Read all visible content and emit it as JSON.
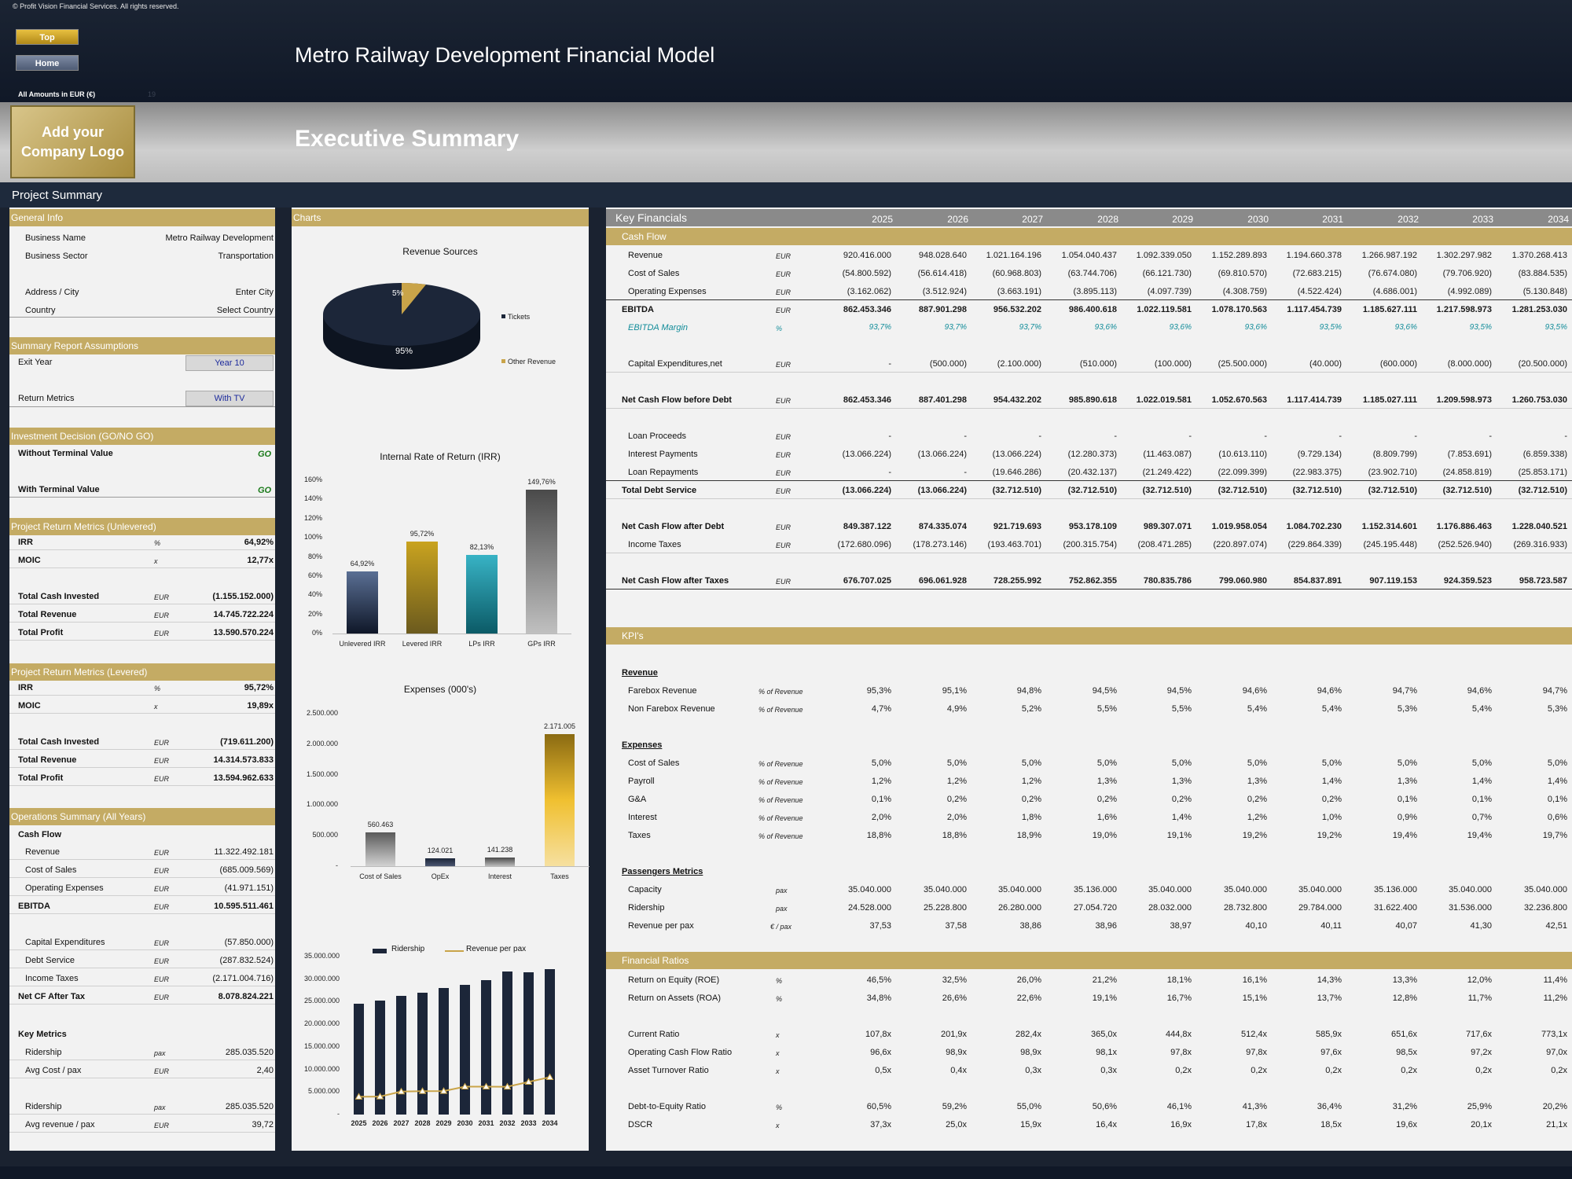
{
  "header": {
    "copyright": "© Profit Vision Financial Services. All rights reserved.",
    "btn_top": "Top",
    "btn_home": "Home",
    "app_title": "Metro Railway Development Financial Model",
    "amounts": "All Amounts in  EUR (€)",
    "amounts_extra": "19",
    "logo": "Add your Company Logo",
    "section_title": "Executive Summary",
    "project_summary": "Project Summary"
  },
  "general": {
    "header": "General Info",
    "rows": [
      [
        "Business Name",
        "Metro Railway Development"
      ],
      [
        "Business Sector",
        "Transportation"
      ],
      [
        "Address / City",
        "Enter City"
      ],
      [
        "Country",
        "Select Country"
      ]
    ]
  },
  "assumptions": {
    "header": "Summary  Report Assumptions",
    "exit_label": "Exit Year",
    "exit_value": "Year 10",
    "return_label": "Return Metrics",
    "return_value": "With TV"
  },
  "decision": {
    "header": "Investment Decision (GO/NO GO)",
    "without": "Without Terminal Value",
    "without_v": "GO",
    "with": "With Terminal Value",
    "with_v": "GO"
  },
  "unlevered": {
    "header": "Project Return Metrics (Unlevered)",
    "rows": [
      [
        "IRR",
        "%",
        "64,92%"
      ],
      [
        "MOIC",
        "x",
        "12,77x"
      ],
      [
        "Total Cash Invested",
        "EUR",
        "(1.155.152.000)"
      ],
      [
        "Total Revenue",
        "EUR",
        "14.745.722.224"
      ],
      [
        "Total Profit",
        "EUR",
        "13.590.570.224"
      ]
    ]
  },
  "levered": {
    "header": "Project Return Metrics (Levered)",
    "rows": [
      [
        "IRR",
        "%",
        "95,72%"
      ],
      [
        "MOIC",
        "x",
        "19,89x"
      ],
      [
        "Total Cash Invested",
        "EUR",
        "(719.611.200)"
      ],
      [
        "Total Revenue",
        "EUR",
        "14.314.573.833"
      ],
      [
        "Total Profit",
        "EUR",
        "13.594.962.633"
      ]
    ]
  },
  "ops": {
    "header": "Operations Summary (All Years)",
    "cashflow": "Cash Flow",
    "rows": [
      [
        "Revenue",
        "EUR",
        "11.322.492.181"
      ],
      [
        "Cost of Sales",
        "EUR",
        "(685.009.569)"
      ],
      [
        "Operating Expenses",
        "EUR",
        "(41.971.151)"
      ],
      [
        "EBITDA",
        "EUR",
        "10.595.511.461"
      ],
      [
        "Capital Expenditures",
        "EUR",
        "(57.850.000)"
      ],
      [
        "Debt Service",
        "EUR",
        "(287.832.524)"
      ],
      [
        "Income Taxes",
        "EUR",
        "(2.171.004.716)"
      ],
      [
        "Net CF After Tax",
        "EUR",
        "8.078.824.221"
      ]
    ],
    "key_metrics": "Key Metrics",
    "km": [
      [
        "Ridership",
        "pax",
        "285.035.520"
      ],
      [
        "Avg Cost / pax",
        "EUR",
        "2,40"
      ],
      [
        "Ridership",
        "pax",
        "285.035.520"
      ],
      [
        "Avg revenue / pax",
        "EUR",
        "39,72"
      ]
    ]
  },
  "charts_header": "Charts",
  "chart_data": [
    {
      "type": "pie",
      "title": "Revenue Sources",
      "categories": [
        "Tickets",
        "Other Revenue"
      ],
      "values": [
        95,
        5
      ],
      "labels": [
        "95%",
        "5%"
      ],
      "colors": [
        "#1c2639",
        "#c9a449"
      ]
    },
    {
      "type": "bar",
      "title": "Internal Rate of Return (IRR)",
      "categories": [
        "Unlevered IRR",
        "Levered IRR",
        "LPs IRR",
        "GPs IRR"
      ],
      "values": [
        64.92,
        95.72,
        82.13,
        149.76
      ],
      "labels": [
        "64,92%",
        "95,72%",
        "82,13%",
        "149,76%"
      ],
      "ylim": [
        0,
        160
      ],
      "yticks": [
        "0%",
        "20%",
        "40%",
        "60%",
        "80%",
        "100%",
        "120%",
        "140%",
        "160%"
      ]
    },
    {
      "type": "bar",
      "title": "Expenses (000's)",
      "categories": [
        "Cost of Sales",
        "OpEx",
        "Interest",
        "Taxes"
      ],
      "values": [
        560463,
        124021,
        141238,
        2171005
      ],
      "labels": [
        "560.463",
        "124.021",
        "141.238",
        "2.171.005"
      ],
      "ylim": [
        0,
        2500000
      ],
      "yticks": [
        "-",
        "500.000",
        "1.000.000",
        "1.500.000",
        "2.000.000",
        "2.500.000"
      ]
    },
    {
      "type": "bar",
      "title": "",
      "categories": [
        "2025",
        "2026",
        "2027",
        "2028",
        "2029",
        "2030",
        "2031",
        "2032",
        "2033",
        "2034"
      ],
      "series": [
        {
          "name": "Ridership",
          "values": [
            24528000,
            25228800,
            26280000,
            27054720,
            28032000,
            28732800,
            29784000,
            31622400,
            31536000,
            32236800
          ]
        },
        {
          "name": "Revenue per pax",
          "values": [
            37.53,
            37.58,
            38.86,
            38.96,
            38.97,
            40.1,
            40.11,
            40.07,
            41.3,
            42.51
          ]
        }
      ],
      "ylim": [
        0,
        35000000
      ],
      "yticks": [
        "-",
        "5.000.000",
        "10.000.000",
        "15.000.000",
        "20.000.000",
        "25.000.000",
        "30.000.000",
        "35.000.000"
      ]
    }
  ],
  "kf": {
    "header": "Key Financials",
    "years": [
      "2025",
      "2026",
      "2027",
      "2028",
      "2029",
      "2030",
      "2031",
      "2032",
      "2033",
      "2034"
    ],
    "cashflow_header": "Cash Flow",
    "rows": [
      {
        "label": "Revenue",
        "unit": "EUR",
        "vals": [
          "920.416.000",
          "948.028.640",
          "1.021.164.196",
          "1.054.040.437",
          "1.092.339.050",
          "1.152.289.893",
          "1.194.660.378",
          "1.266.987.192",
          "1.302.297.982",
          "1.370.268.413"
        ]
      },
      {
        "label": "Cost of Sales",
        "unit": "EUR",
        "vals": [
          "(54.800.592)",
          "(56.614.418)",
          "(60.968.803)",
          "(63.744.706)",
          "(66.121.730)",
          "(69.810.570)",
          "(72.683.215)",
          "(76.674.080)",
          "(79.706.920)",
          "(83.884.535)"
        ]
      },
      {
        "label": "Operating Expenses",
        "unit": "EUR",
        "vals": [
          "(3.162.062)",
          "(3.512.924)",
          "(3.663.191)",
          "(3.895.113)",
          "(4.097.739)",
          "(4.308.759)",
          "(4.522.424)",
          "(4.686.001)",
          "(4.992.089)",
          "(5.130.848)"
        ]
      },
      {
        "label": "EBITDA",
        "unit": "EUR",
        "vals": [
          "862.453.346",
          "887.901.298",
          "956.532.202",
          "986.400.618",
          "1.022.119.581",
          "1.078.170.563",
          "1.117.454.739",
          "1.185.627.111",
          "1.217.598.973",
          "1.281.253.030"
        ]
      },
      {
        "label": "EBITDA Margin",
        "unit": "%",
        "vals": [
          "93,7%",
          "93,7%",
          "93,7%",
          "93,6%",
          "93,6%",
          "93,6%",
          "93,5%",
          "93,6%",
          "93,5%",
          "93,5%"
        ]
      },
      {
        "label": "Capital Expenditures,net",
        "unit": "EUR",
        "vals": [
          "-",
          "(500.000)",
          "(2.100.000)",
          "(510.000)",
          "(100.000)",
          "(25.500.000)",
          "(40.000)",
          "(600.000)",
          "(8.000.000)",
          "(20.500.000)"
        ]
      },
      {
        "label": "Net Cash Flow before Debt",
        "unit": "EUR",
        "vals": [
          "862.453.346",
          "887.401.298",
          "954.432.202",
          "985.890.618",
          "1.022.019.581",
          "1.052.670.563",
          "1.117.414.739",
          "1.185.027.111",
          "1.209.598.973",
          "1.260.753.030"
        ]
      },
      {
        "label": "Loan Proceeds",
        "unit": "EUR",
        "vals": [
          "-",
          "-",
          "-",
          "-",
          "-",
          "-",
          "-",
          "-",
          "-",
          "-"
        ]
      },
      {
        "label": "Interest Payments",
        "unit": "EUR",
        "vals": [
          "(13.066.224)",
          "(13.066.224)",
          "(13.066.224)",
          "(12.280.373)",
          "(11.463.087)",
          "(10.613.110)",
          "(9.729.134)",
          "(8.809.799)",
          "(7.853.691)",
          "(6.859.338)"
        ]
      },
      {
        "label": "Loan Repayments",
        "unit": "EUR",
        "vals": [
          "-",
          "-",
          "(19.646.286)",
          "(20.432.137)",
          "(21.249.422)",
          "(22.099.399)",
          "(22.983.375)",
          "(23.902.710)",
          "(24.858.819)",
          "(25.853.171)"
        ]
      },
      {
        "label": "Total Debt Service",
        "unit": "EUR",
        "vals": [
          "(13.066.224)",
          "(13.066.224)",
          "(32.712.510)",
          "(32.712.510)",
          "(32.712.510)",
          "(32.712.510)",
          "(32.712.510)",
          "(32.712.510)",
          "(32.712.510)",
          "(32.712.510)"
        ]
      },
      {
        "label": "Net Cash Flow after Debt",
        "unit": "EUR",
        "vals": [
          "849.387.122",
          "874.335.074",
          "921.719.693",
          "953.178.109",
          "989.307.071",
          "1.019.958.054",
          "1.084.702.230",
          "1.152.314.601",
          "1.176.886.463",
          "1.228.040.521"
        ]
      },
      {
        "label": "Income Taxes",
        "unit": "EUR",
        "vals": [
          "(172.680.096)",
          "(178.273.146)",
          "(193.463.701)",
          "(200.315.754)",
          "(208.471.285)",
          "(220.897.074)",
          "(229.864.339)",
          "(245.195.448)",
          "(252.526.940)",
          "(269.316.933)"
        ]
      },
      {
        "label": "Net Cash Flow after Taxes",
        "unit": "EUR",
        "vals": [
          "676.707.025",
          "696.061.928",
          "728.255.992",
          "752.862.355",
          "780.835.786",
          "799.060.980",
          "854.837.891",
          "907.119.153",
          "924.359.523",
          "958.723.587"
        ]
      }
    ],
    "kpi_header": "KPI's",
    "revenue_label": "Revenue",
    "revenue": [
      {
        "label": "Farebox Revenue",
        "unit": "% of Revenue",
        "vals": [
          "95,3%",
          "95,1%",
          "94,8%",
          "94,5%",
          "94,5%",
          "94,6%",
          "94,6%",
          "94,7%",
          "94,6%",
          "94,7%"
        ]
      },
      {
        "label": "Non Farebox Revenue",
        "unit": "% of Revenue",
        "vals": [
          "4,7%",
          "4,9%",
          "5,2%",
          "5,5%",
          "5,5%",
          "5,4%",
          "5,4%",
          "5,3%",
          "5,4%",
          "5,3%"
        ]
      }
    ],
    "expenses_label": "Expenses",
    "expenses": [
      {
        "label": "Cost of Sales",
        "unit": "% of Revenue",
        "vals": [
          "5,0%",
          "5,0%",
          "5,0%",
          "5,0%",
          "5,0%",
          "5,0%",
          "5,0%",
          "5,0%",
          "5,0%",
          "5,0%"
        ]
      },
      {
        "label": "Payroll",
        "unit": "% of Revenue",
        "vals": [
          "1,2%",
          "1,2%",
          "1,2%",
          "1,3%",
          "1,3%",
          "1,3%",
          "1,4%",
          "1,3%",
          "1,4%",
          "1,4%"
        ]
      },
      {
        "label": "G&A",
        "unit": "% of Revenue",
        "vals": [
          "0,1%",
          "0,2%",
          "0,2%",
          "0,2%",
          "0,2%",
          "0,2%",
          "0,2%",
          "0,1%",
          "0,1%",
          "0,1%"
        ]
      },
      {
        "label": "Interest",
        "unit": "% of Revenue",
        "vals": [
          "2,0%",
          "2,0%",
          "1,8%",
          "1,6%",
          "1,4%",
          "1,2%",
          "1,0%",
          "0,9%",
          "0,7%",
          "0,6%"
        ]
      },
      {
        "label": "Taxes",
        "unit": "% of Revenue",
        "vals": [
          "18,8%",
          "18,8%",
          "18,9%",
          "19,0%",
          "19,1%",
          "19,2%",
          "19,2%",
          "19,4%",
          "19,4%",
          "19,7%"
        ]
      }
    ],
    "pax_label": "Passengers Metrics",
    "pax": [
      {
        "label": "Capacity",
        "unit": "pax",
        "vals": [
          "35.040.000",
          "35.040.000",
          "35.040.000",
          "35.136.000",
          "35.040.000",
          "35.040.000",
          "35.040.000",
          "35.136.000",
          "35.040.000",
          "35.040.000"
        ]
      },
      {
        "label": "Ridership",
        "unit": "pax",
        "vals": [
          "24.528.000",
          "25.228.800",
          "26.280.000",
          "27.054.720",
          "28.032.000",
          "28.732.800",
          "29.784.000",
          "31.622.400",
          "31.536.000",
          "32.236.800"
        ]
      },
      {
        "label": "Revenue per pax",
        "unit": "€ / pax",
        "vals": [
          "37,53",
          "37,58",
          "38,86",
          "38,96",
          "38,97",
          "40,10",
          "40,11",
          "40,07",
          "41,30",
          "42,51"
        ]
      }
    ],
    "ratios_header": "Financial Ratios",
    "ratios": [
      {
        "label": "Return on Equity (ROE)",
        "unit": "%",
        "vals": [
          "46,5%",
          "32,5%",
          "26,0%",
          "21,2%",
          "18,1%",
          "16,1%",
          "14,3%",
          "13,3%",
          "12,0%",
          "11,4%"
        ]
      },
      {
        "label": "Return on Assets (ROA)",
        "unit": "%",
        "vals": [
          "34,8%",
          "26,6%",
          "22,6%",
          "19,1%",
          "16,7%",
          "15,1%",
          "13,7%",
          "12,8%",
          "11,7%",
          "11,2%"
        ]
      },
      {
        "label": "Current Ratio",
        "unit": "x",
        "vals": [
          "107,8x",
          "201,9x",
          "282,4x",
          "365,0x",
          "444,8x",
          "512,4x",
          "585,9x",
          "651,6x",
          "717,6x",
          "773,1x"
        ]
      },
      {
        "label": "Operating Cash Flow Ratio",
        "unit": "x",
        "vals": [
          "96,6x",
          "98,9x",
          "98,9x",
          "98,1x",
          "97,8x",
          "97,8x",
          "97,6x",
          "98,5x",
          "97,2x",
          "97,0x"
        ]
      },
      {
        "label": "Asset Turnover Ratio",
        "unit": "x",
        "vals": [
          "0,5x",
          "0,4x",
          "0,3x",
          "0,3x",
          "0,2x",
          "0,2x",
          "0,2x",
          "0,2x",
          "0,2x",
          "0,2x"
        ]
      },
      {
        "label": "Debt-to-Equity Ratio",
        "unit": "%",
        "vals": [
          "60,5%",
          "59,2%",
          "55,0%",
          "50,6%",
          "46,1%",
          "41,3%",
          "36,4%",
          "31,2%",
          "25,9%",
          "20,2%"
        ]
      },
      {
        "label": "DSCR",
        "unit": "x",
        "vals": [
          "37,3x",
          "25,0x",
          "15,9x",
          "16,4x",
          "16,9x",
          "17,8x",
          "18,5x",
          "19,6x",
          "20,1x",
          "21,1x"
        ]
      }
    ]
  }
}
